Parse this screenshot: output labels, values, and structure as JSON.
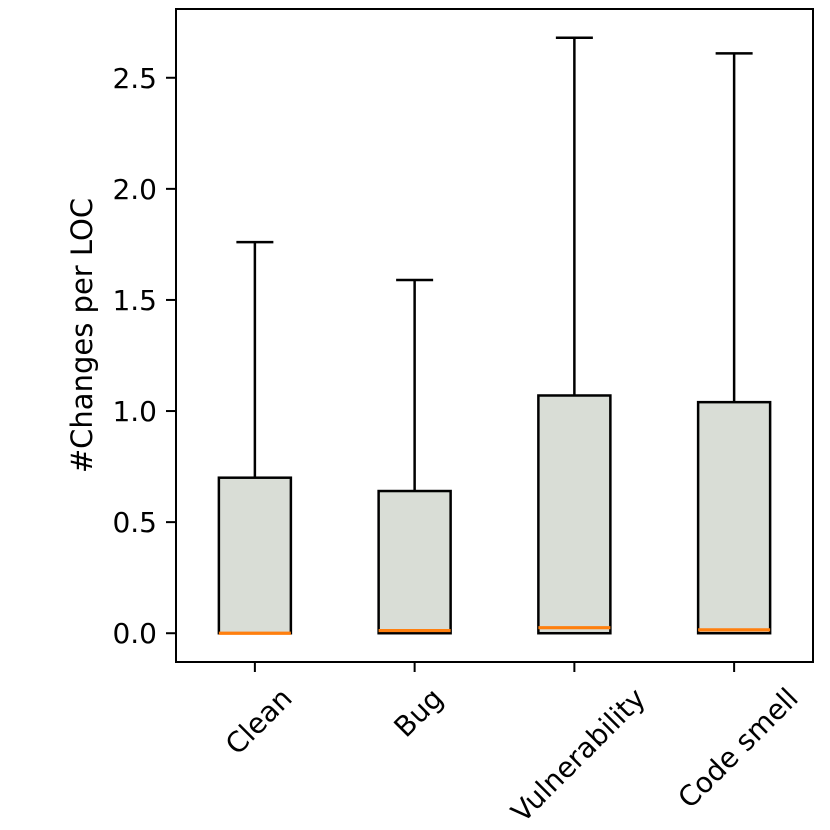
{
  "figure": {
    "background": "#ffffff"
  },
  "chart_data": {
    "type": "boxplot",
    "title": "",
    "xlabel": "",
    "ylabel": "#Changes per LOC",
    "categories": [
      "Clean",
      "Bug",
      "Vulnerability",
      "Code smell"
    ],
    "boxes": [
      {
        "label": "Clean",
        "whisker_low": 0.0,
        "q1": 0.0,
        "median": 0.0,
        "q3": 0.7,
        "whisker_high": 1.76
      },
      {
        "label": "Bug",
        "whisker_low": 0.0,
        "q1": 0.0,
        "median": 0.012,
        "q3": 0.64,
        "whisker_high": 1.59
      },
      {
        "label": "Vulnerability",
        "whisker_low": 0.0,
        "q1": 0.0,
        "median": 0.025,
        "q3": 1.07,
        "whisker_high": 2.68
      },
      {
        "label": "Code smell",
        "whisker_low": 0.0,
        "q1": 0.0,
        "median": 0.015,
        "q3": 1.04,
        "whisker_high": 2.61
      }
    ],
    "yticks": [
      0.0,
      0.5,
      1.0,
      1.5,
      2.0,
      2.5
    ],
    "ytick_labels": [
      "0.0",
      "0.5",
      "1.0",
      "1.5",
      "2.0",
      "2.5"
    ],
    "ylim": [
      -0.134,
      2.814
    ],
    "xtick_rotation": 45,
    "grid": false,
    "legend": false,
    "colors": {
      "box_fill": "#d9ddd6",
      "box_edge": "#000000",
      "median": "#ff7f0e",
      "whisker": "#000000",
      "text": "#000000",
      "frame": "#000000"
    }
  }
}
